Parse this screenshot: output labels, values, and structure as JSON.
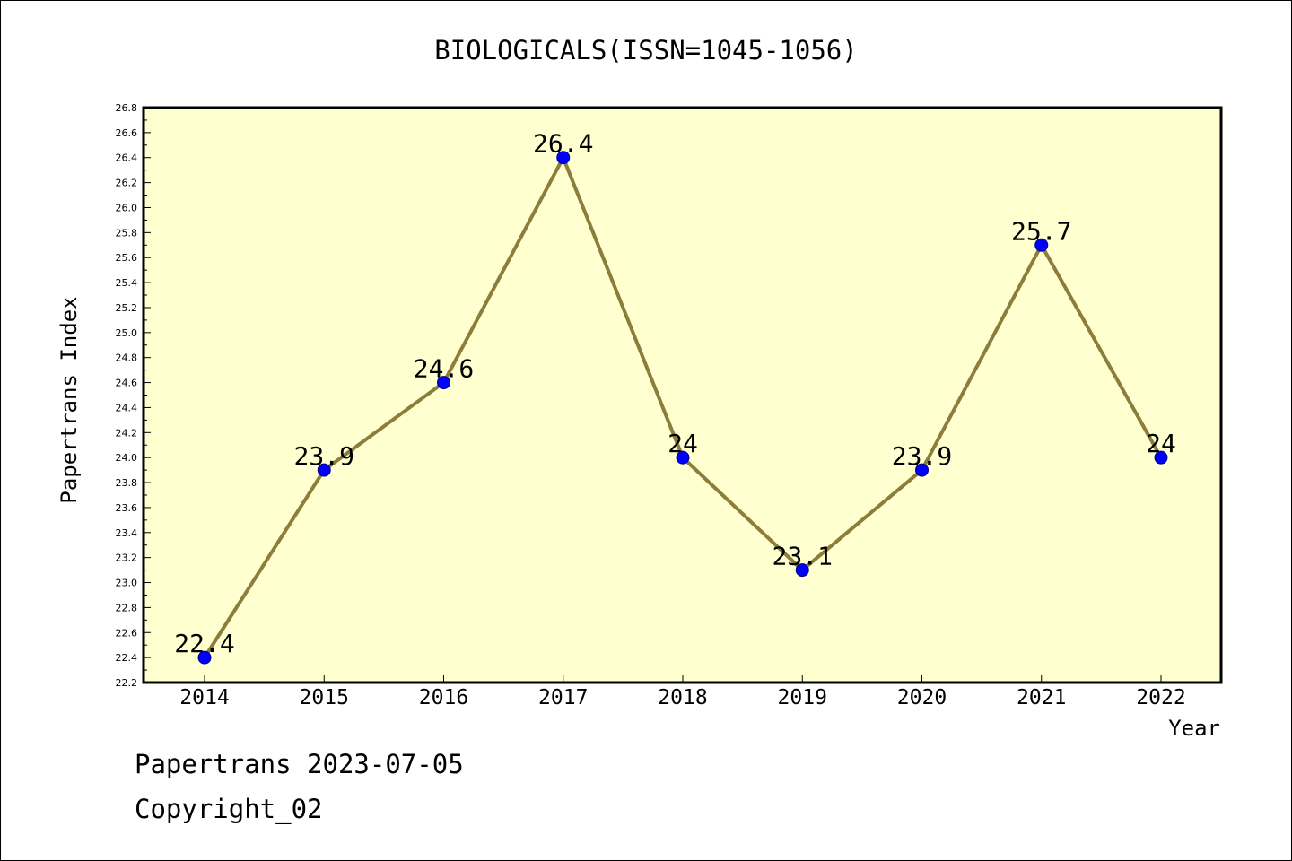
{
  "chart_data": {
    "type": "line",
    "title": "BIOLOGICALS(ISSN=1045-1056)",
    "xlabel": "Year",
    "ylabel": "Papertrans Index",
    "categories": [
      "2014",
      "2015",
      "2016",
      "2017",
      "2018",
      "2019",
      "2020",
      "2021",
      "2022"
    ],
    "values": [
      22.4,
      23.9,
      24.6,
      26.4,
      24.0,
      23.1,
      23.9,
      25.7,
      24.0
    ],
    "data_labels": [
      "22.4",
      "23.9",
      "24.6",
      "26.4",
      "24",
      "23.1",
      "23.9",
      "25.7",
      "24"
    ],
    "ylim": [
      22.2,
      26.8
    ],
    "yticks": [
      "22.2",
      "22.4",
      "22.6",
      "22.8",
      "23.0",
      "23.2",
      "23.4",
      "23.6",
      "23.8",
      "24.0",
      "24.2",
      "24.4",
      "24.6",
      "24.8",
      "25.0",
      "25.2",
      "25.4",
      "25.6",
      "25.8",
      "26.0",
      "26.2",
      "26.4",
      "26.6",
      "26.8"
    ],
    "grid": false,
    "colors": {
      "plot_background": "#ffffd0",
      "line": "#8b7d3a",
      "marker": "#0000ff"
    }
  },
  "footer": {
    "line1": "Papertrans 2023-07-05",
    "line2": "Copyright_02"
  }
}
